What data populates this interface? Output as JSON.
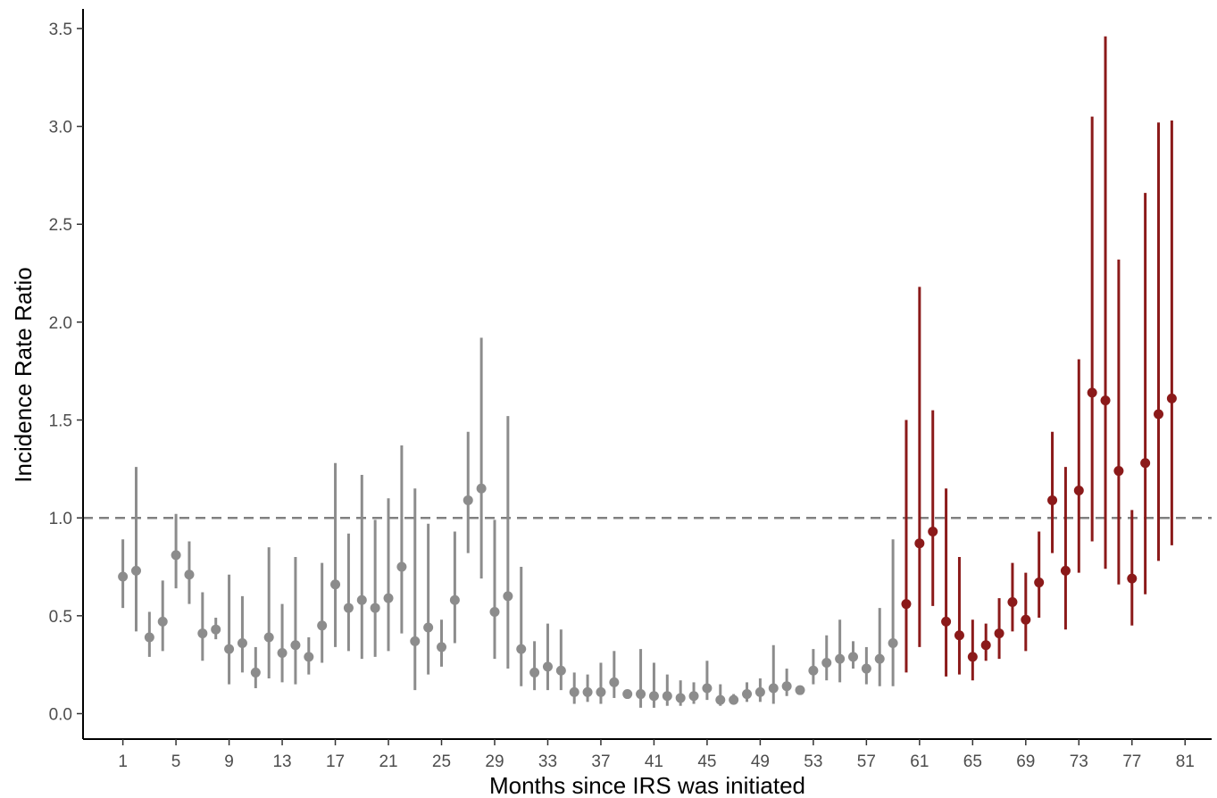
{
  "chart_data": {
    "type": "scatter",
    "title": "",
    "xlabel": "Months since IRS was initiated",
    "ylabel": "Incidence Rate Ratio",
    "xlim": [
      -2,
      83
    ],
    "ylim": [
      -0.13,
      3.6
    ],
    "x_ticks": [
      1,
      5,
      9,
      13,
      17,
      21,
      25,
      29,
      33,
      37,
      41,
      45,
      49,
      53,
      57,
      61,
      65,
      69,
      73,
      77,
      81
    ],
    "y_ticks": [
      0.0,
      0.5,
      1.0,
      1.5,
      2.0,
      2.5,
      3.0,
      3.5
    ],
    "y_tick_labels": [
      "0.0",
      "0.5",
      "1.0",
      "1.5",
      "2.0",
      "2.5",
      "3.0",
      "3.5"
    ],
    "reference_line": {
      "y": 1.0,
      "style": "dashed",
      "color": "#808080"
    },
    "grid": false,
    "legend": "none",
    "colors": {
      "pre": "#8c8c8c",
      "post": "#8b1a1a"
    },
    "series": [
      {
        "color": "#8c8c8c",
        "x": [
          1,
          2,
          3,
          4,
          5,
          6,
          7,
          8,
          9,
          10,
          11,
          12,
          13,
          14,
          15,
          16,
          17,
          18,
          19,
          20,
          21,
          22,
          23,
          24,
          25,
          26,
          27,
          28,
          29,
          30,
          31,
          32,
          33,
          34,
          35,
          36,
          37,
          38,
          39,
          40,
          41,
          42,
          43,
          44,
          45,
          46,
          47,
          48,
          49,
          50,
          51,
          52,
          53,
          54,
          55,
          56,
          57,
          58,
          59
        ],
        "y": [
          0.7,
          0.73,
          0.39,
          0.47,
          0.81,
          0.71,
          0.41,
          0.43,
          0.33,
          0.36,
          0.21,
          0.39,
          0.31,
          0.35,
          0.29,
          0.45,
          0.66,
          0.54,
          0.58,
          0.54,
          0.59,
          0.75,
          0.37,
          0.44,
          0.34,
          0.58,
          1.09,
          1.15,
          0.52,
          0.6,
          0.33,
          0.21,
          0.24,
          0.22,
          0.11,
          0.11,
          0.11,
          0.16,
          0.1,
          0.1,
          0.09,
          0.09,
          0.08,
          0.09,
          0.13,
          0.07,
          0.07,
          0.1,
          0.11,
          0.13,
          0.14,
          0.12,
          0.22,
          0.26,
          0.28,
          0.29,
          0.23,
          0.28,
          0.36
        ],
        "lower": [
          0.54,
          0.42,
          0.29,
          0.32,
          0.64,
          0.56,
          0.27,
          0.38,
          0.15,
          0.21,
          0.13,
          0.18,
          0.16,
          0.15,
          0.2,
          0.26,
          0.34,
          0.32,
          0.28,
          0.29,
          0.32,
          0.41,
          0.12,
          0.2,
          0.24,
          0.36,
          0.82,
          0.69,
          0.28,
          0.23,
          0.14,
          0.12,
          0.12,
          0.12,
          0.05,
          0.06,
          0.05,
          0.08,
          0.09,
          0.03,
          0.03,
          0.04,
          0.04,
          0.05,
          0.07,
          0.04,
          0.05,
          0.06,
          0.06,
          0.05,
          0.09,
          0.1,
          0.15,
          0.17,
          0.16,
          0.23,
          0.15,
          0.14,
          0.14
        ],
        "upper": [
          0.89,
          1.26,
          0.52,
          0.68,
          1.02,
          0.88,
          0.62,
          0.49,
          0.71,
          0.6,
          0.34,
          0.85,
          0.56,
          0.8,
          0.39,
          0.77,
          1.28,
          0.92,
          1.22,
          0.99,
          1.1,
          1.37,
          1.15,
          0.97,
          0.48,
          0.93,
          1.44,
          1.92,
          0.99,
          1.52,
          0.75,
          0.37,
          0.46,
          0.43,
          0.21,
          0.2,
          0.26,
          0.32,
          0.12,
          0.33,
          0.26,
          0.2,
          0.17,
          0.16,
          0.27,
          0.15,
          0.1,
          0.16,
          0.18,
          0.35,
          0.23,
          0.14,
          0.33,
          0.4,
          0.48,
          0.37,
          0.34,
          0.54,
          0.89
        ]
      },
      {
        "color": "#8b1a1a",
        "x": [
          60,
          61,
          62,
          63,
          64,
          65,
          66,
          67,
          68,
          69,
          70,
          71,
          72,
          73,
          74,
          75,
          76,
          77,
          78,
          79,
          80
        ],
        "y": [
          0.56,
          0.87,
          0.93,
          0.47,
          0.4,
          0.29,
          0.35,
          0.41,
          0.57,
          0.48,
          0.67,
          1.09,
          0.73,
          1.14,
          1.64,
          1.6,
          1.24,
          0.69,
          1.28,
          1.53,
          1.61
        ],
        "lower": [
          0.21,
          0.34,
          0.55,
          0.19,
          0.2,
          0.17,
          0.27,
          0.28,
          0.42,
          0.32,
          0.49,
          0.82,
          0.43,
          0.72,
          0.88,
          0.74,
          0.66,
          0.45,
          0.61,
          0.78,
          0.86
        ],
        "upper": [
          1.5,
          2.18,
          1.55,
          1.15,
          0.8,
          0.48,
          0.46,
          0.59,
          0.77,
          0.72,
          0.93,
          1.44,
          1.26,
          1.81,
          3.05,
          3.46,
          2.32,
          1.04,
          2.66,
          3.02,
          3.03
        ]
      }
    ]
  }
}
